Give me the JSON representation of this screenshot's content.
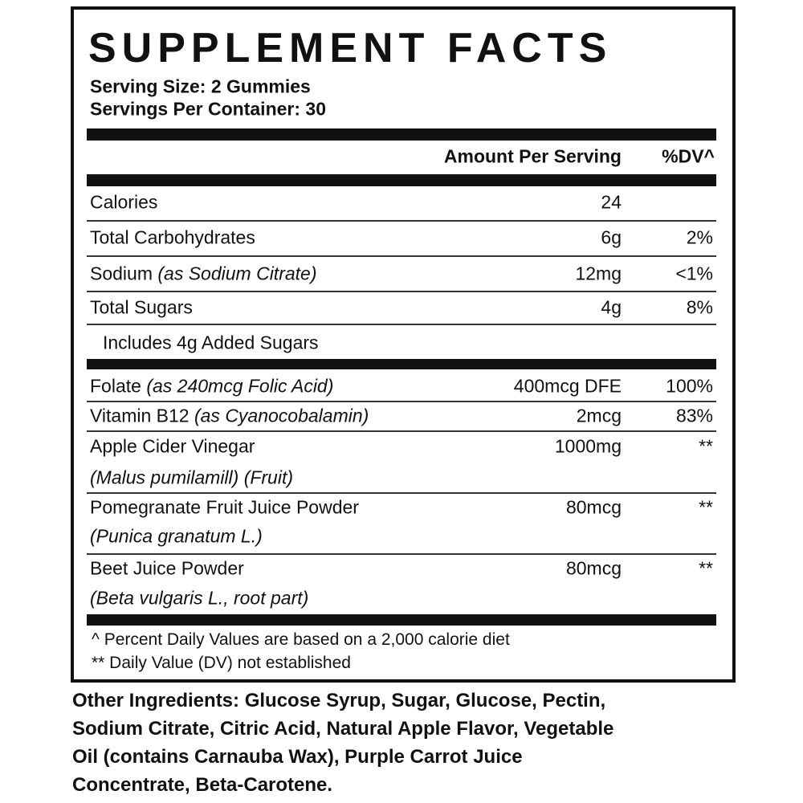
{
  "title": "SUPPLEMENT FACTS",
  "serving_size": "Serving Size: 2 Gummies",
  "servings_per_container": "Servings Per Container: 30",
  "header": {
    "amount": "Amount Per Serving",
    "dv": "%DV^"
  },
  "rows": [
    {
      "name": "Calories",
      "amount": "24"
    },
    {
      "name": "Total Carbohydrates",
      "amount": "6g",
      "dv": "2%"
    },
    {
      "name": "Sodium",
      "note": "(as Sodium Citrate)",
      "amount": "12mg",
      "dv": "<1%"
    },
    {
      "name": "Total Sugars",
      "amount": "4g",
      "dv": "8%"
    },
    {
      "name": "Includes 4g Added Sugars"
    }
  ],
  "ingredients": [
    {
      "name": "Folate",
      "note": "(as 240mcg Folic Acid)",
      "amount": "400mcg DFE",
      "dv": "100%"
    },
    {
      "name": "Vitamin B12",
      "note": "(as Cyanocobalamin)",
      "amount": "2mcg",
      "dv": "83%"
    },
    {
      "name": "Apple Cider Vinegar",
      "source": "(Malus pumilamill) (Fruit)",
      "amount": "1000mg",
      "dv": "**"
    },
    {
      "name": "Pomegranate Fruit Juice Powder",
      "source": "(Punica granatum L.)",
      "amount": "80mcg",
      "dv": "**"
    },
    {
      "name": "Beet Juice Powder",
      "source": "(Beta vulgaris L., root part)",
      "amount": "80mcg",
      "dv": "**"
    }
  ],
  "footnotes": [
    "^ Percent Daily Values are based on a 2,000 calorie diet",
    "** Daily Value (DV) not established"
  ],
  "other_ingredients": {
    "label": "Other Ingredients:",
    "lines": [
      "Glucose Syrup, Sugar, Glucose, Pectin,",
      "Sodium Citrate, Citric Acid, Natural Apple Flavor, Vegetable",
      "Oil (contains Carnauba Wax), Purple Carrot Juice",
      "Concentrate, Beta-Carotene."
    ]
  }
}
